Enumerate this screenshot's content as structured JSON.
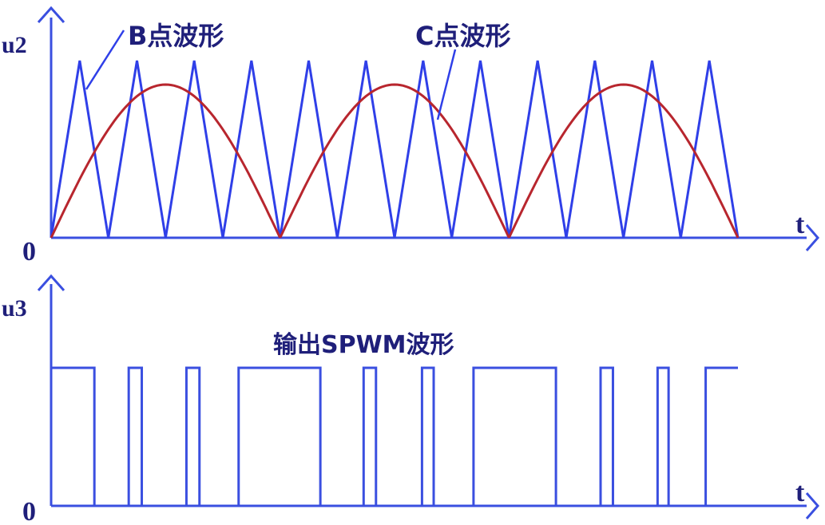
{
  "top_panel": {
    "y_label": "u2",
    "x_label": "t",
    "origin_label": "0",
    "label_b": "B点波形",
    "label_c": "C点波形",
    "carrier_peaks": 12,
    "sine_halfwaves": 3
  },
  "bottom_panel": {
    "y_label": "u3",
    "x_label": "t",
    "origin_label": "0",
    "title": "输出SPWM波形",
    "pulse_pattern": [
      {
        "start": 0.0,
        "end": 0.063
      },
      {
        "start": 0.113,
        "end": 0.132
      },
      {
        "start": 0.197,
        "end": 0.216
      },
      {
        "start": 0.273,
        "end": 0.392
      },
      {
        "start": 0.455,
        "end": 0.473
      },
      {
        "start": 0.54,
        "end": 0.557
      },
      {
        "start": 0.615,
        "end": 0.735
      },
      {
        "start": 0.8,
        "end": 0.818
      },
      {
        "start": 0.883,
        "end": 0.899
      },
      {
        "start": 0.953,
        "end": 1.0
      }
    ]
  },
  "colors": {
    "axis": "#3a4fe0",
    "carrier": "#2f3fe8",
    "sine": "#b8262e",
    "pulse_high": "#3a4fe0",
    "pulse_low": "#2a32c8"
  }
}
